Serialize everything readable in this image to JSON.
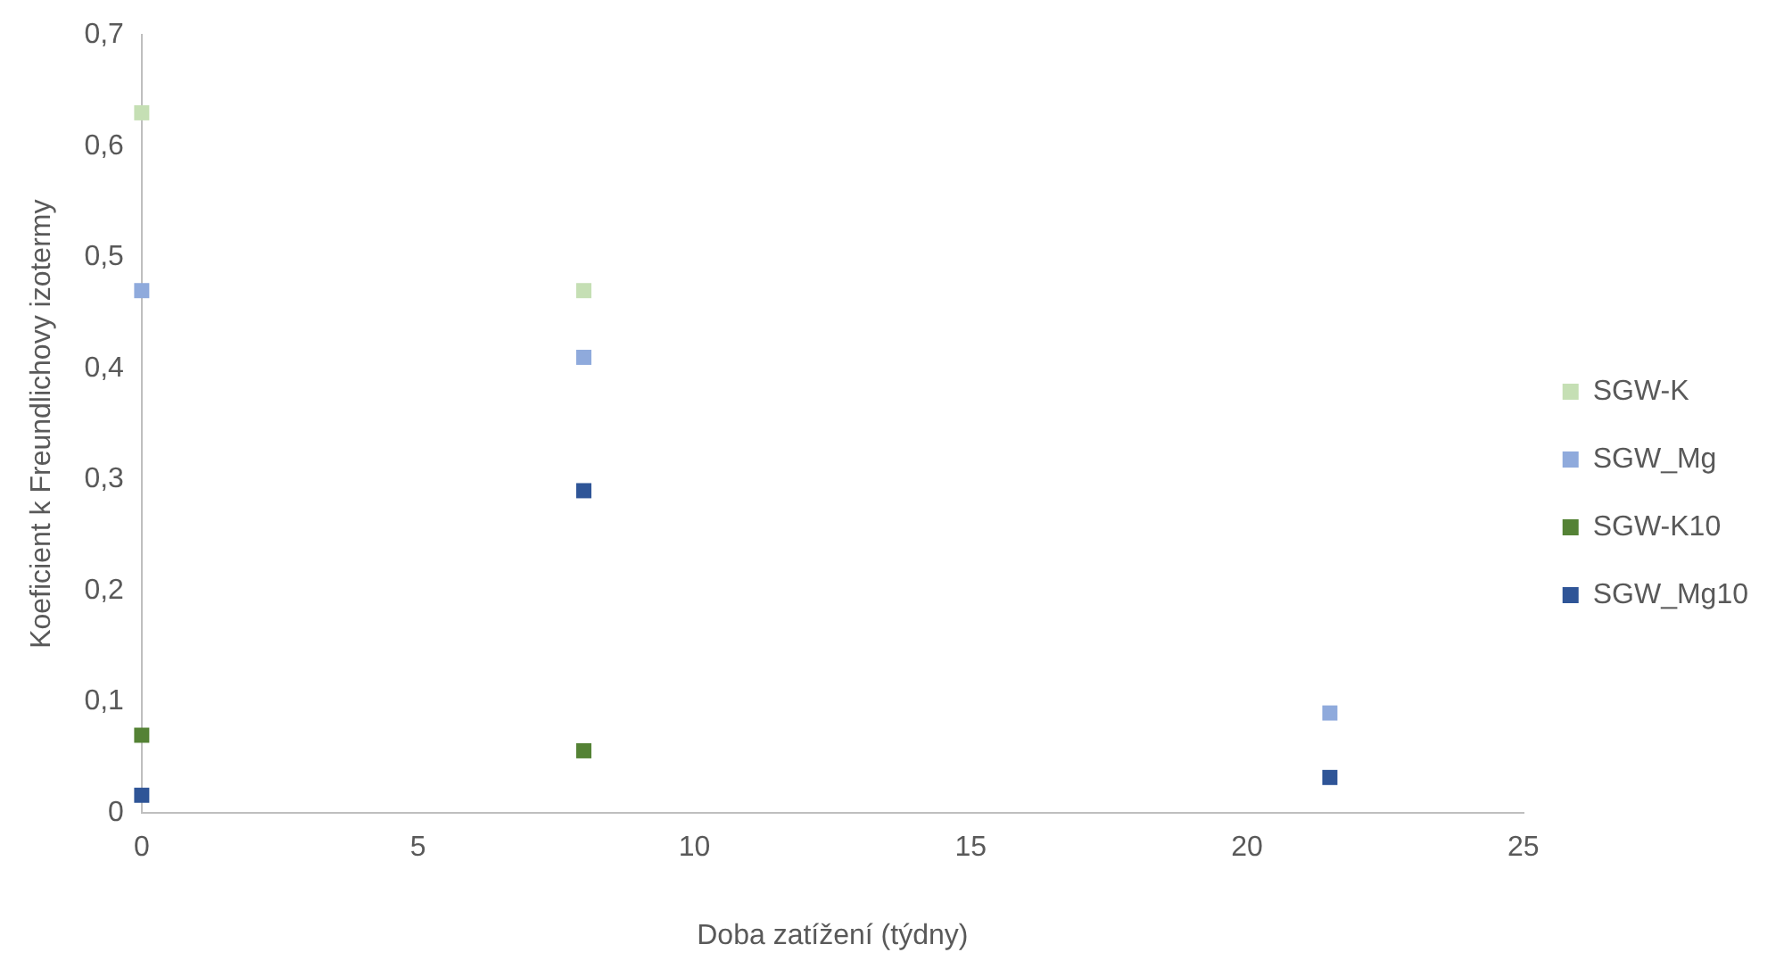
{
  "chart_data": {
    "type": "scatter",
    "xlabel": "Doba zatížení (týdny)",
    "ylabel": "Koeficient k Freundlichovy izotermy",
    "xlim": [
      0,
      25
    ],
    "xticks": [
      0,
      5,
      10,
      15,
      20,
      25
    ],
    "ylim": [
      0,
      0.7
    ],
    "yticks": [
      {
        "value": 0,
        "label": "0"
      },
      {
        "value": 0.1,
        "label": "0,1"
      },
      {
        "value": 0.2,
        "label": "0,2"
      },
      {
        "value": 0.3,
        "label": "0,3"
      },
      {
        "value": 0.4,
        "label": "0,4"
      },
      {
        "value": 0.5,
        "label": "0,5"
      },
      {
        "value": 0.6,
        "label": "0,6"
      },
      {
        "value": 0.7,
        "label": "0,7"
      }
    ],
    "x": [
      0,
      8,
      21.5
    ],
    "series": [
      {
        "name": "SGW-K",
        "color": "#c5dfb4",
        "values": [
          0.63,
          0.47,
          null
        ]
      },
      {
        "name": "SGW_Mg",
        "color": "#8faadc",
        "values": [
          0.47,
          0.41,
          0.09
        ]
      },
      {
        "name": "SGW-K10",
        "color": "#548235",
        "values": [
          0.07,
          0.056,
          null
        ]
      },
      {
        "name": "SGW_Mg10",
        "color": "#2f5597",
        "values": [
          0.016,
          0.29,
          0.032
        ]
      }
    ],
    "marker": "square",
    "grid": false,
    "legend": "right"
  }
}
